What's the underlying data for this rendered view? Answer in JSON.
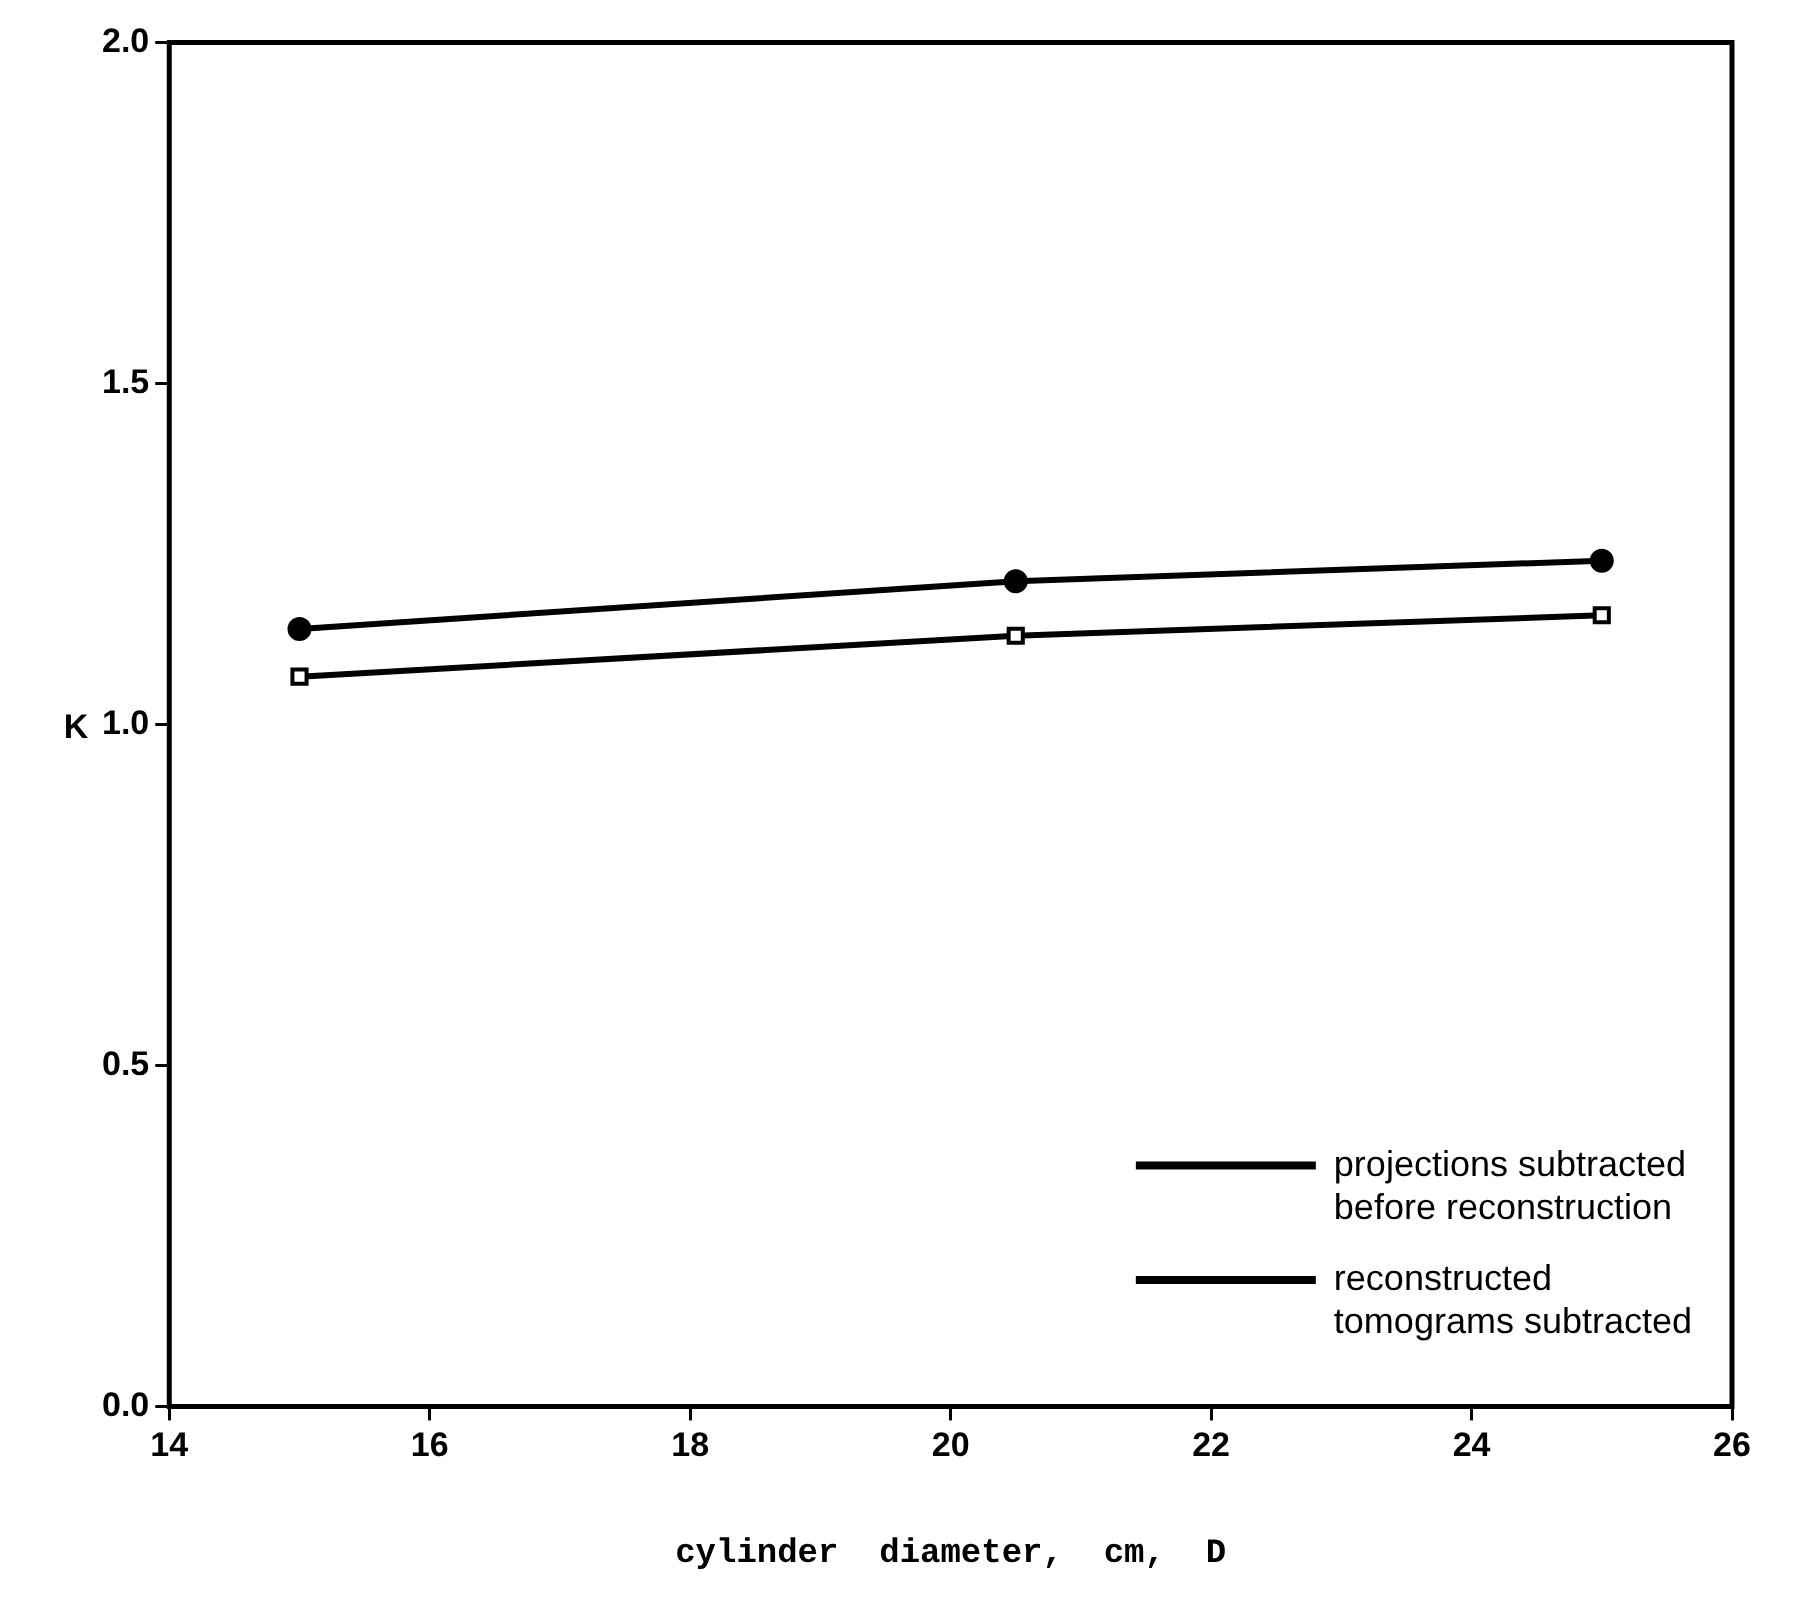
{
  "chart_data": {
    "type": "line",
    "xlabel": "cylinder  diameter,  cm,  D",
    "ylabel": "K",
    "x": [
      15,
      20.5,
      25
    ],
    "series": [
      {
        "name": "projections subtracted\nbefore reconstruction",
        "color": "#000000",
        "marker": "square",
        "values": [
          1.07,
          1.13,
          1.16
        ]
      },
      {
        "name": "reconstructed\ntomograms subtracted",
        "color": "#000000",
        "marker": "circle",
        "values": [
          1.14,
          1.21,
          1.24
        ]
      }
    ],
    "xlim": [
      14,
      26
    ],
    "xticks": [
      14,
      16,
      18,
      20,
      22,
      24,
      26
    ],
    "ylim": [
      0,
      2
    ],
    "yticks": [
      {
        "value": 0,
        "label": "0.0"
      },
      {
        "value": 0.5,
        "label": "0.5"
      },
      {
        "value": 1,
        "label": "1.0"
      },
      {
        "value": 1.5,
        "label": "1.5"
      },
      {
        "value": 2,
        "label": "2.0"
      }
    ],
    "grid": false,
    "legend": "bottom right",
    "line_style": "solid"
  }
}
